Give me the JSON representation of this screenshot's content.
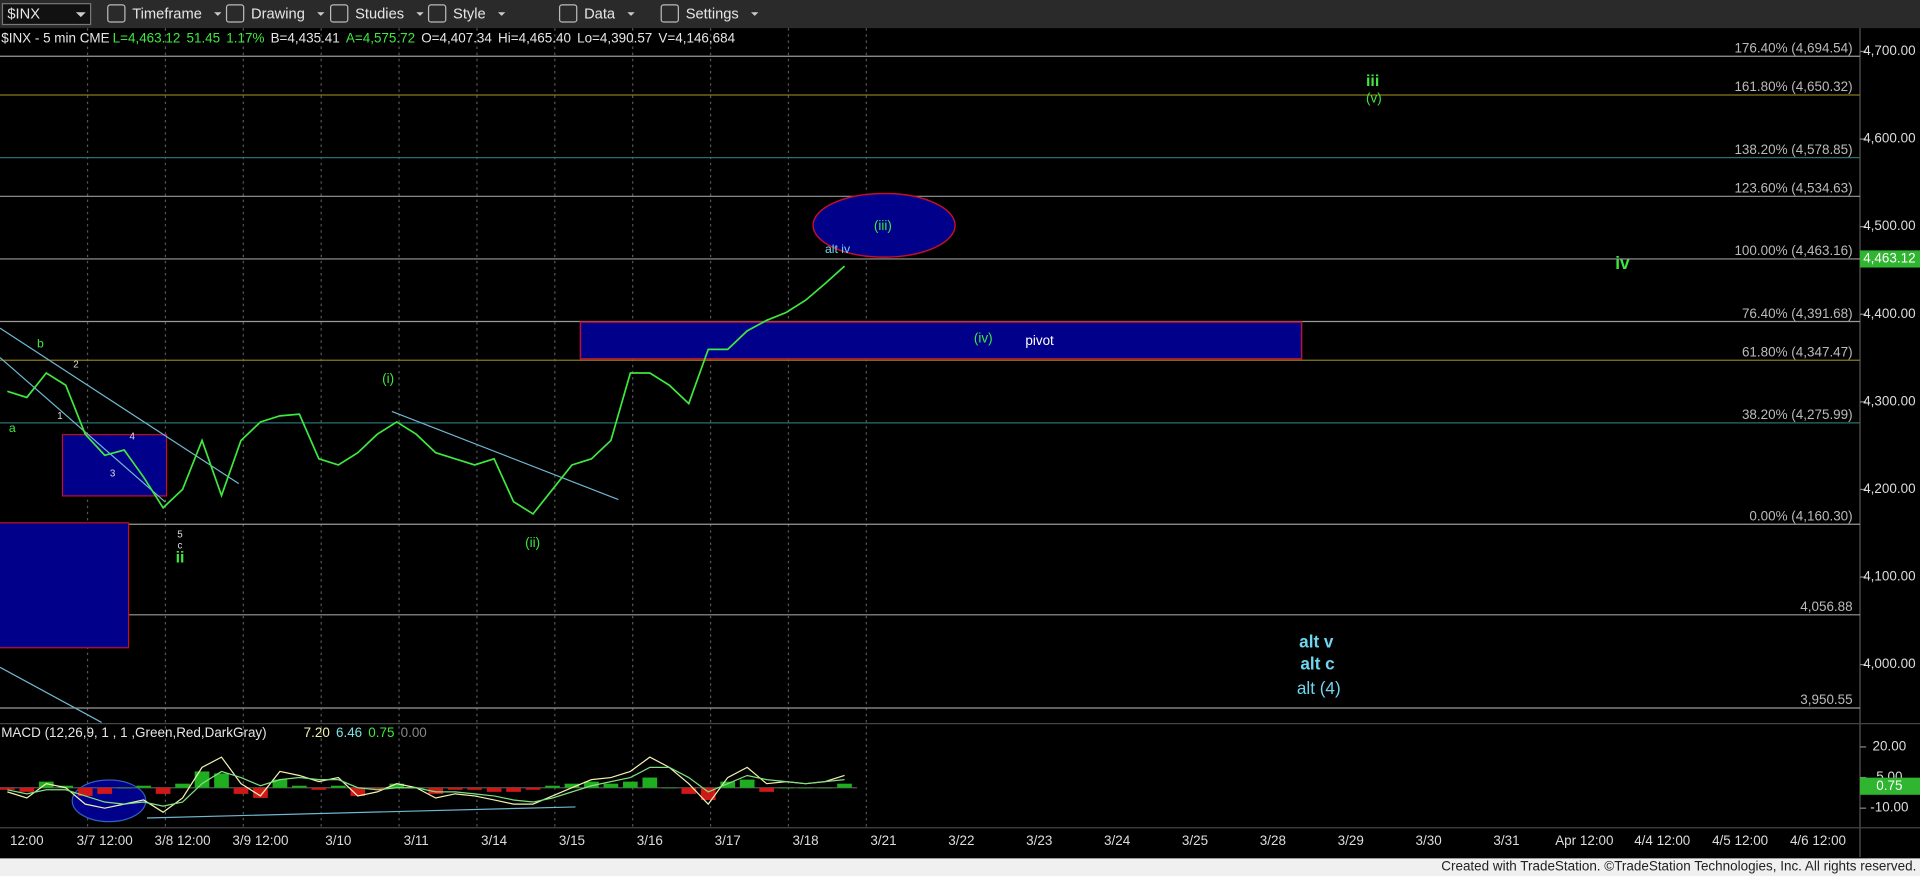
{
  "toolbar": {
    "symbol": "$INX",
    "items": [
      "Timeframe",
      "Drawing",
      "Studies",
      "Style",
      "Data",
      "Settings"
    ]
  },
  "footer": "Created with TradeStation. ©TradeStation Technologies, Inc. All rights reserved.",
  "chart_data": [
    {
      "type": "line",
      "title": "$INX - 5 min CME",
      "stats": [
        "L=4,463.12",
        "51.45",
        "1.17%",
        "B=4,435.41",
        "A=4,575.72",
        "O=4,407.34",
        "Hi=4,465.40",
        "Lo=4,390.57",
        "V=4,146,684"
      ],
      "categories": [
        null,
        "12:00",
        null,
        null,
        null,
        "3/7 12:00",
        null,
        null,
        null,
        "3/8 12:00",
        null,
        null,
        null,
        "3/9 12:00",
        null,
        null,
        null,
        "3/10",
        null,
        null,
        null,
        "3/11",
        null,
        null,
        null,
        "3/14",
        null,
        null,
        null,
        "3/15",
        null,
        null,
        null,
        "3/16",
        null,
        null,
        null,
        "3/17",
        null,
        null,
        null,
        "3/18",
        null,
        null,
        null,
        "3/21",
        null,
        null,
        null,
        "3/22",
        null,
        null,
        null,
        "3/23",
        null,
        null,
        null,
        "3/24",
        null,
        null,
        null,
        "3/25",
        null,
        null,
        null,
        "3/28",
        null,
        null,
        null,
        "3/29",
        null,
        null,
        null,
        "3/30",
        null,
        null,
        null,
        "3/31",
        null,
        null,
        null,
        "Apr 12:00",
        null,
        null,
        null,
        "4/4 12:00",
        null,
        null,
        null,
        "4/5 12:00",
        null,
        null,
        null,
        "4/6 12:00"
      ],
      "series": [
        {
          "color": "#3ee83e",
          "values": [
            4312,
            4305,
            4333,
            4319,
            4263,
            4239,
            4245,
            4214,
            4179,
            4200,
            4256,
            4193,
            4256,
            4277,
            4284,
            4286,
            4235,
            4228,
            4242,
            4263,
            4277,
            4263,
            4242,
            4235,
            4228,
            4235,
            4186,
            4172,
            4200,
            4228,
            4235,
            4256,
            4333,
            4333,
            4319,
            4298,
            4360,
            4360,
            4381,
            4393,
            4402,
            4416,
            4435,
            4455,
            null,
            null,
            null,
            null,
            null,
            null,
            null,
            null,
            null,
            null,
            null,
            null,
            null,
            null,
            null,
            null,
            null,
            null,
            null,
            null,
            null,
            null,
            null,
            null,
            null,
            null,
            null,
            null,
            null,
            null,
            null,
            null,
            null,
            null,
            null,
            null,
            null,
            null,
            null,
            null,
            null,
            null,
            null,
            null,
            null,
            null,
            null,
            null,
            null,
            null
          ]
        }
      ],
      "ylim": [
        3934,
        4728
      ],
      "yticks": [
        {
          "value": 4000,
          "label": "4,000.00"
        },
        {
          "value": 4100,
          "label": "4,100.00"
        },
        {
          "value": 4200,
          "label": "4,200.00"
        },
        {
          "value": 4300,
          "label": "4,300.00"
        },
        {
          "value": 4400,
          "label": "4,400.00"
        },
        {
          "value": 4500,
          "label": "4,500.00"
        },
        {
          "value": 4600,
          "label": "4,600.00"
        },
        {
          "value": 4700,
          "label": "4,700.00"
        }
      ],
      "levels": [
        {
          "value": 4694.54,
          "label": "176.40% (4,694.54)",
          "color": "#9a9a9a"
        },
        {
          "value": 4650.32,
          "label": "161.80% (4,650.32)",
          "color": "#8a7a1a"
        },
        {
          "value": 4578.85,
          "label": "138.20% (4,578.85)",
          "color": "#2a6f6f"
        },
        {
          "value": 4534.63,
          "label": "123.60% (4,534.63)",
          "color": "#9a9a9a"
        },
        {
          "value": 4463.16,
          "label": "100.00% (4,463.16)",
          "color": "#9a9a9a"
        },
        {
          "value": 4391.68,
          "label": "76.40% (4,391.68)",
          "color": "#9a9a9a"
        },
        {
          "value": 4347.47,
          "label": "61.80% (4,347.47)",
          "color": "#8a7a1a"
        },
        {
          "value": 4275.99,
          "label": "38.20% (4,275.99)",
          "color": "#2a6f6f"
        },
        {
          "value": 4160.3,
          "label": "0.00% (4,160.30)",
          "color": "#9a9a9a"
        },
        {
          "value": 4056.88,
          "label": "4,056.88",
          "color": "#9a9a9a"
        },
        {
          "value": 3950.55,
          "label": "3,950.55",
          "color": "#9a9a9a"
        }
      ],
      "markers": [
        {
          "value": 4463.12,
          "label": "4,463.12",
          "color": "#2fb52f"
        }
      ],
      "annotations": [
        "b",
        "a",
        "1",
        "2",
        "3",
        "4",
        "5",
        "c",
        "ii",
        "(i)",
        "(ii)",
        "alt iv",
        "(iii)",
        "(iv)",
        "pivot",
        "iii",
        "(v)",
        "iv",
        "alt v",
        "alt c",
        "alt (4)"
      ]
    },
    {
      "type": "macd",
      "title": "MACD (12,26,9, 1 , 1 ,Green,Red,DarkGray)",
      "readouts": [
        "7.20",
        "6.46",
        "0.75",
        "0.00"
      ],
      "series": [
        {
          "color": "#f2f2b0",
          "values": [
            -2,
            -5,
            2,
            0,
            -8,
            -10,
            -8,
            -6,
            -12,
            -5,
            10,
            15,
            2,
            -4,
            8,
            6,
            3,
            5,
            -4,
            -2,
            2,
            0,
            -5,
            -3,
            -4,
            -6,
            -8,
            -8,
            -4,
            0,
            4,
            5,
            8,
            15,
            10,
            2,
            -8,
            5,
            10,
            2,
            3,
            2,
            3,
            6,
            null,
            null,
            null,
            null,
            null,
            null,
            null,
            null,
            null,
            null,
            null,
            null,
            null,
            null,
            null,
            null,
            null,
            null,
            null,
            null,
            null,
            null,
            null,
            null,
            null,
            null,
            null,
            null,
            null,
            null,
            null,
            null,
            null,
            null,
            null,
            null,
            null,
            null,
            null,
            null,
            null,
            null,
            null,
            null,
            null,
            null,
            null,
            null,
            null,
            null
          ]
        },
        {
          "color": "#7fe07f",
          "values": [
            -1,
            -3,
            -1,
            -1,
            -4,
            -7,
            -8,
            -7,
            -9,
            -7,
            2,
            8,
            5,
            1,
            4,
            5,
            4,
            4,
            0,
            -1,
            0,
            0,
            -2,
            -2,
            -3,
            -4,
            -6,
            -7,
            -5,
            -2,
            1,
            3,
            5,
            10,
            10,
            5,
            -2,
            2,
            6,
            4,
            3,
            2,
            3,
            4,
            null,
            null,
            null,
            null,
            null,
            null,
            null,
            null,
            null,
            null,
            null,
            null,
            null,
            null,
            null,
            null,
            null,
            null,
            null,
            null,
            null,
            null,
            null,
            null,
            null,
            null,
            null,
            null,
            null,
            null,
            null,
            null,
            null,
            null,
            null,
            null,
            null,
            null,
            null,
            null,
            null,
            null,
            null,
            null,
            null,
            null,
            null,
            null,
            null,
            null
          ]
        }
      ],
      "histogram": [
        -1,
        -2,
        3,
        1,
        -4,
        -3,
        0,
        1,
        -3,
        2,
        8,
        7,
        -3,
        -5,
        4,
        1,
        -1,
        1,
        -4,
        -1,
        2,
        0,
        -3,
        -1,
        -1,
        -2,
        -2,
        -1,
        1,
        2,
        3,
        2,
        3,
        5,
        0,
        -3,
        -6,
        3,
        4,
        -2,
        0,
        0,
        0,
        2,
        null,
        null,
        null,
        null,
        null,
        null,
        null,
        null,
        null,
        null,
        null,
        null,
        null,
        null,
        null,
        null,
        null,
        null,
        null,
        null,
        null,
        null,
        null,
        null,
        null,
        null,
        null,
        null,
        null,
        null,
        null,
        null,
        null,
        null,
        null,
        null,
        null,
        null,
        null,
        null,
        null,
        null,
        null,
        null,
        null,
        null,
        null,
        null,
        null,
        null
      ],
      "ylim": [
        -19.6,
        30.8
      ],
      "yticks": [
        {
          "value": 20,
          "label": "20.00"
        },
        {
          "value": 5,
          "label": "5.00"
        },
        {
          "value": -10,
          "label": "-10.00"
        }
      ],
      "markers": [
        {
          "value": 0.75,
          "label": "0.75",
          "color": "#2fb52f"
        }
      ]
    }
  ]
}
